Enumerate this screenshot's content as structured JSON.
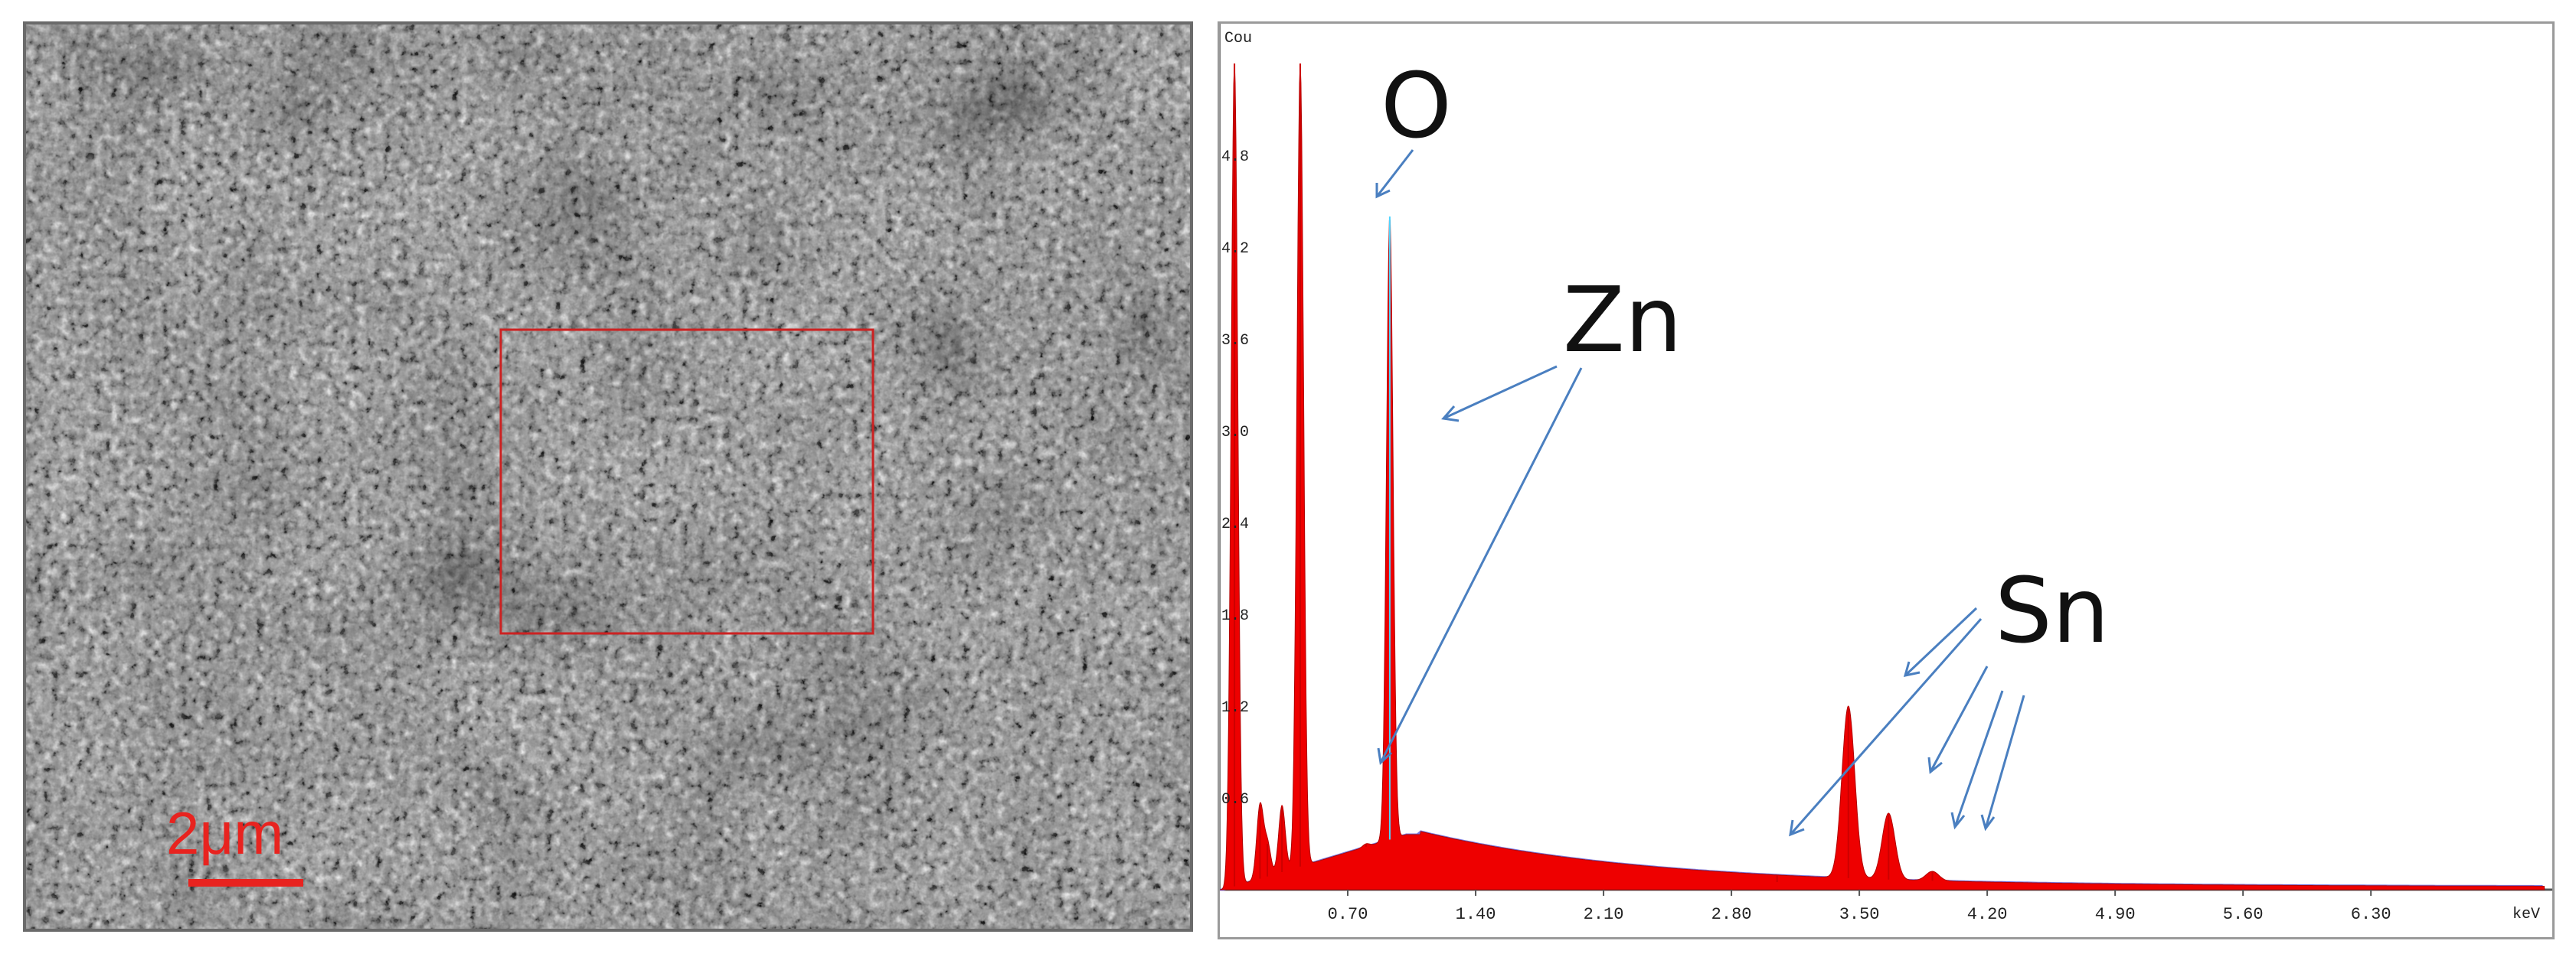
{
  "sem_image": {
    "scale_bar_label": "2μm",
    "scale_bar_color": "#e8231f",
    "roi_color": "#cc2222"
  },
  "chart_data": {
    "type": "area",
    "title": "",
    "xlabel": "keV",
    "ylabel": "Cou",
    "xlim": [
      0,
      7.25
    ],
    "ylim": [
      0,
      5.4
    ],
    "x_ticks": [
      "0.70",
      "1.40",
      "2.10",
      "2.80",
      "3.50",
      "4.20",
      "4.90",
      "5.60",
      "6.30"
    ],
    "y_ticks": [
      "0.6",
      "1.2",
      "1.8",
      "2.4",
      "3.0",
      "3.6",
      "4.2",
      "4.8"
    ],
    "fill_color": "#ee0000",
    "background_color": "#7a7adf",
    "grid": false,
    "peaks": [
      {
        "x": 0.08,
        "y": 5.4
      },
      {
        "x": 0.22,
        "y": 0.55
      },
      {
        "x": 0.26,
        "y": 0.3
      },
      {
        "x": 0.34,
        "y": 0.55
      },
      {
        "x": 0.44,
        "y": 5.4
      },
      {
        "x": 0.8,
        "y": 0.3
      },
      {
        "x": 0.93,
        "y": 4.4
      },
      {
        "x": 3.05,
        "y": 0.05
      },
      {
        "x": 3.44,
        "y": 1.2
      },
      {
        "x": 3.66,
        "y": 0.5
      },
      {
        "x": 3.9,
        "y": 0.12
      },
      {
        "x": 4.13,
        "y": 0.05
      }
    ],
    "annotations": [
      {
        "label": "O"
      },
      {
        "label": "Zn"
      },
      {
        "label": "Sn"
      }
    ]
  }
}
